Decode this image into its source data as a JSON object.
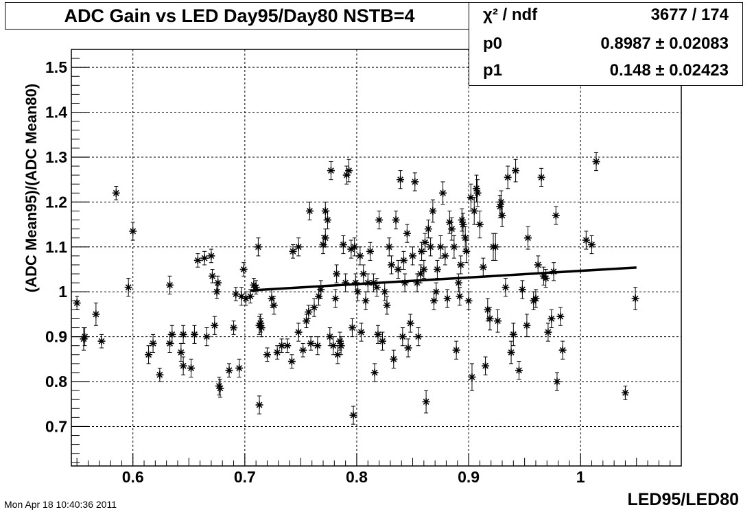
{
  "title": "ADC Gain vs LED Day95/Day80 NSTB=4",
  "stats": [
    {
      "label": "χ² / ndf",
      "value": "3677 / 174"
    },
    {
      "label": "p0",
      "value": "0.8987 ± 0.02083"
    },
    {
      "label": "p1",
      "value": "0.148 ± 0.02423"
    }
  ],
  "timestamp": "Mon Apr 18 10:40:36 2011",
  "chart_data": {
    "type": "scatter",
    "title": "ADC Gain vs LED Day95/Day80 NSTB=4",
    "xlabel": "LED95/LED80",
    "ylabel": "(ADC Mean95)/(ADC Mean80)",
    "xlim": [
      0.545,
      1.09
    ],
    "ylim": [
      0.612,
      1.54
    ],
    "xticks": [
      0.6,
      0.7,
      0.8,
      0.9,
      1
    ],
    "xtick_labels": [
      "0.6",
      "0.7",
      "0.8",
      "0.9",
      "1"
    ],
    "yticks": [
      0.7,
      0.8,
      0.9,
      1.0,
      1.1,
      1.2,
      1.3,
      1.4,
      1.5
    ],
    "ytick_labels": [
      "0.7",
      "0.8",
      "0.9",
      "1",
      "1.1",
      "1.2",
      "1.3",
      "1.4",
      "1.5"
    ],
    "grid": true,
    "marker": "asterisk",
    "fit": {
      "p0": 0.8987,
      "p1": 0.148,
      "x_range": [
        0.705,
        1.05
      ]
    },
    "points": [
      [
        0.55,
        0.975,
        0.015
      ],
      [
        0.556,
        0.895,
        0.025
      ],
      [
        0.557,
        0.9,
        0.02
      ],
      [
        0.567,
        0.95,
        0.025
      ],
      [
        0.572,
        0.89,
        0.015
      ],
      [
        0.585,
        1.22,
        0.015
      ],
      [
        0.596,
        1.01,
        0.02
      ],
      [
        0.6,
        1.135,
        0.02
      ],
      [
        0.614,
        0.86,
        0.02
      ],
      [
        0.618,
        0.885,
        0.02
      ],
      [
        0.624,
        0.815,
        0.015
      ],
      [
        0.633,
        1.015,
        0.02
      ],
      [
        0.633,
        0.885,
        0.02
      ],
      [
        0.635,
        0.905,
        0.02
      ],
      [
        0.643,
        0.865,
        0.02
      ],
      [
        0.645,
        0.905,
        0.02
      ],
      [
        0.645,
        0.835,
        0.02
      ],
      [
        0.652,
        0.83,
        0.02
      ],
      [
        0.655,
        0.905,
        0.02
      ],
      [
        0.658,
        1.07,
        0.015
      ],
      [
        0.664,
        1.075,
        0.015
      ],
      [
        0.666,
        0.9,
        0.02
      ],
      [
        0.67,
        1.08,
        0.015
      ],
      [
        0.671,
        1.035,
        0.015
      ],
      [
        0.673,
        0.925,
        0.02
      ],
      [
        0.675,
        1.0,
        0.015
      ],
      [
        0.676,
        1.02,
        0.015
      ],
      [
        0.677,
        0.79,
        0.02
      ],
      [
        0.678,
        0.785,
        0.02
      ],
      [
        0.686,
        0.825,
        0.015
      ],
      [
        0.69,
        0.92,
        0.015
      ],
      [
        0.692,
        0.995,
        0.015
      ],
      [
        0.695,
        0.83,
        0.02
      ],
      [
        0.697,
        0.99,
        0.02
      ],
      [
        0.699,
        1.05,
        0.015
      ],
      [
        0.701,
        0.985,
        0.015
      ],
      [
        0.705,
        0.99,
        0.015
      ],
      [
        0.708,
        1.015,
        0.015
      ],
      [
        0.71,
        1.01,
        0.015
      ],
      [
        0.712,
        1.1,
        0.02
      ],
      [
        0.713,
        0.925,
        0.02
      ],
      [
        0.714,
        0.93,
        0.02
      ],
      [
        0.715,
        0.92,
        0.02
      ],
      [
        0.713,
        0.748,
        0.02
      ],
      [
        0.72,
        0.86,
        0.015
      ],
      [
        0.724,
        0.985,
        0.02
      ],
      [
        0.726,
        0.97,
        0.02
      ],
      [
        0.729,
        0.865,
        0.015
      ],
      [
        0.733,
        0.88,
        0.015
      ],
      [
        0.738,
        0.88,
        0.015
      ],
      [
        0.742,
        0.845,
        0.015
      ],
      [
        0.743,
        1.09,
        0.015
      ],
      [
        0.748,
        0.91,
        0.02
      ],
      [
        0.748,
        1.1,
        0.02
      ],
      [
        0.752,
        0.87,
        0.015
      ],
      [
        0.755,
        0.935,
        0.015
      ],
      [
        0.757,
        0.955,
        0.015
      ],
      [
        0.758,
        1.18,
        0.02
      ],
      [
        0.759,
        0.885,
        0.015
      ],
      [
        0.762,
        0.965,
        0.02
      ],
      [
        0.765,
        0.88,
        0.02
      ],
      [
        0.766,
        0.99,
        0.02
      ],
      [
        0.768,
        1.005,
        0.02
      ],
      [
        0.77,
        1.105,
        0.02
      ],
      [
        0.772,
        1.12,
        0.02
      ],
      [
        0.772,
        1.18,
        0.02
      ],
      [
        0.774,
        1.16,
        0.02
      ],
      [
        0.776,
        0.9,
        0.02
      ],
      [
        0.777,
        1.27,
        0.02
      ],
      [
        0.779,
        0.88,
        0.02
      ],
      [
        0.781,
        0.985,
        0.02
      ],
      [
        0.782,
        1.04,
        0.02
      ],
      [
        0.783,
        0.86,
        0.02
      ],
      [
        0.785,
        0.89,
        0.02
      ],
      [
        0.786,
        0.88,
        0.02
      ],
      [
        0.788,
        1.105,
        0.02
      ],
      [
        0.79,
        1.02,
        0.02
      ],
      [
        0.791,
        1.26,
        0.02
      ],
      [
        0.793,
        1.27,
        0.025
      ],
      [
        0.795,
        1.095,
        0.02
      ],
      [
        0.796,
        0.92,
        0.02
      ],
      [
        0.797,
        0.725,
        0.02
      ],
      [
        0.798,
        1.1,
        0.02
      ],
      [
        0.799,
        1.02,
        0.02
      ],
      [
        0.801,
        1.0,
        0.02
      ],
      [
        0.803,
        1.08,
        0.02
      ],
      [
        0.804,
        0.91,
        0.02
      ],
      [
        0.806,
        1.04,
        0.02
      ],
      [
        0.808,
        0.98,
        0.02
      ],
      [
        0.81,
        1.02,
        0.02
      ],
      [
        0.812,
        1.09,
        0.02
      ],
      [
        0.815,
        1.02,
        0.02
      ],
      [
        0.816,
        0.82,
        0.02
      ],
      [
        0.818,
        1.01,
        0.02
      ],
      [
        0.819,
        0.905,
        0.02
      ],
      [
        0.82,
        1.16,
        0.02
      ],
      [
        0.823,
        0.89,
        0.02
      ],
      [
        0.825,
        1.0,
        0.02
      ],
      [
        0.827,
        0.97,
        0.02
      ],
      [
        0.829,
        1.1,
        0.02
      ],
      [
        0.831,
        1.06,
        0.02
      ],
      [
        0.833,
        0.85,
        0.02
      ],
      [
        0.835,
        1.16,
        0.02
      ],
      [
        0.837,
        1.05,
        0.02
      ],
      [
        0.839,
        1.25,
        0.02
      ],
      [
        0.841,
        0.9,
        0.02
      ],
      [
        0.842,
        1.07,
        0.02
      ],
      [
        0.843,
        1.02,
        0.02
      ],
      [
        0.845,
        1.13,
        0.02
      ],
      [
        0.846,
        0.875,
        0.02
      ],
      [
        0.848,
        0.93,
        0.02
      ],
      [
        0.85,
        1.08,
        0.02
      ],
      [
        0.852,
        1.245,
        0.02
      ],
      [
        0.854,
        1.02,
        0.02
      ],
      [
        0.855,
        0.9,
        0.02
      ],
      [
        0.857,
        1.04,
        0.02
      ],
      [
        0.858,
        1.09,
        0.02
      ],
      [
        0.86,
        1.05,
        0.02
      ],
      [
        0.861,
        1.11,
        0.02
      ],
      [
        0.862,
        0.755,
        0.025
      ],
      [
        0.864,
        1.14,
        0.02
      ],
      [
        0.866,
        1.1,
        0.02
      ],
      [
        0.868,
        1.18,
        0.025
      ],
      [
        0.869,
        0.98,
        0.02
      ],
      [
        0.871,
        1.0,
        0.02
      ],
      [
        0.872,
        1.05,
        0.02
      ],
      [
        0.875,
        1.1,
        0.025
      ],
      [
        0.877,
        1.22,
        0.025
      ],
      [
        0.879,
        1.08,
        0.02
      ],
      [
        0.881,
        0.985,
        0.02
      ],
      [
        0.883,
        1.155,
        0.025
      ],
      [
        0.885,
        1.14,
        0.025
      ],
      [
        0.887,
        1.1,
        0.025
      ],
      [
        0.889,
        0.87,
        0.02
      ],
      [
        0.891,
        1.02,
        0.02
      ],
      [
        0.892,
        0.99,
        0.02
      ],
      [
        0.893,
        1.06,
        0.02
      ],
      [
        0.894,
        1.16,
        0.025
      ],
      [
        0.895,
        1.15,
        0.025
      ],
      [
        0.897,
        1.12,
        0.025
      ],
      [
        0.898,
        1.09,
        0.025
      ],
      [
        0.9,
        0.98,
        0.02
      ],
      [
        0.902,
        1.21,
        0.03
      ],
      [
        0.903,
        0.81,
        0.03
      ],
      [
        0.905,
        1.18,
        0.03
      ],
      [
        0.907,
        1.23,
        0.03
      ],
      [
        0.908,
        1.22,
        0.03
      ],
      [
        0.91,
        1.15,
        0.03
      ],
      [
        0.913,
        1.055,
        0.02
      ],
      [
        0.915,
        0.835,
        0.02
      ],
      [
        0.917,
        0.96,
        0.025
      ],
      [
        0.919,
        0.94,
        0.025
      ],
      [
        0.922,
        1.1,
        0.03
      ],
      [
        0.924,
        1.1,
        0.03
      ],
      [
        0.926,
        0.935,
        0.025
      ],
      [
        0.928,
        1.19,
        0.025
      ],
      [
        0.929,
        1.2,
        0.025
      ],
      [
        0.93,
        1.17,
        0.025
      ],
      [
        0.933,
        1.01,
        0.02
      ],
      [
        0.935,
        1.255,
        0.025
      ],
      [
        0.938,
        0.865,
        0.025
      ],
      [
        0.94,
        0.905,
        0.025
      ],
      [
        0.942,
        1.27,
        0.025
      ],
      [
        0.945,
        0.825,
        0.02
      ],
      [
        0.948,
        1.005,
        0.02
      ],
      [
        0.952,
        0.925,
        0.025
      ],
      [
        0.953,
        1.12,
        0.025
      ],
      [
        0.958,
        0.98,
        0.02
      ],
      [
        0.96,
        0.985,
        0.02
      ],
      [
        0.962,
        1.06,
        0.02
      ],
      [
        0.965,
        1.255,
        0.02
      ],
      [
        0.967,
        1.035,
        0.02
      ],
      [
        0.969,
        1.03,
        0.02
      ],
      [
        0.971,
        0.91,
        0.02
      ],
      [
        0.974,
        0.94,
        0.02
      ],
      [
        0.976,
        1.045,
        0.02
      ],
      [
        0.978,
        1.17,
        0.02
      ],
      [
        0.979,
        0.8,
        0.02
      ],
      [
        0.982,
        0.945,
        0.02
      ],
      [
        0.984,
        0.87,
        0.02
      ],
      [
        1.005,
        1.115,
        0.02
      ],
      [
        1.01,
        1.105,
        0.02
      ],
      [
        1.014,
        1.29,
        0.02
      ],
      [
        1.04,
        0.775,
        0.015
      ],
      [
        1.049,
        0.985,
        0.025
      ]
    ]
  }
}
